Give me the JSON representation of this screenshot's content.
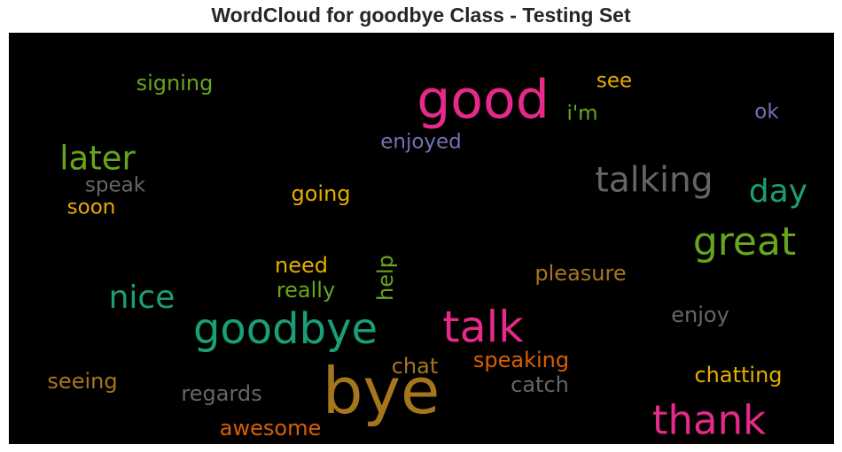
{
  "chart_data": {
    "type": "wordcloud",
    "title": "WordCloud for goodbye Class - Testing Set",
    "colors": {
      "pink": "#e7298a",
      "green": "#1b9e77",
      "lime": "#66a61e",
      "gold": "#a6761d",
      "gray": "#666666",
      "purple": "#7570b3",
      "orange": "#d95f02",
      "yellow": "#e6ab02"
    },
    "words": [
      {
        "text": "good",
        "color": "#e7298a"
      },
      {
        "text": "bye",
        "color": "#a6761d"
      },
      {
        "text": "goodbye",
        "color": "#1b9e77"
      },
      {
        "text": "talk",
        "color": "#e7298a"
      },
      {
        "text": "thank",
        "color": "#e7298a"
      },
      {
        "text": "great",
        "color": "#66a61e"
      },
      {
        "text": "talking",
        "color": "#666666"
      },
      {
        "text": "later",
        "color": "#66a61e"
      },
      {
        "text": "nice",
        "color": "#1b9e77"
      },
      {
        "text": "day",
        "color": "#1b9e77"
      },
      {
        "text": "signing",
        "color": "#66a61e"
      },
      {
        "text": "see",
        "color": "#e6ab02"
      },
      {
        "text": "i'm",
        "color": "#66a61e"
      },
      {
        "text": "ok",
        "color": "#7570b3"
      },
      {
        "text": "enjoyed",
        "color": "#7570b3"
      },
      {
        "text": "speak",
        "color": "#666666"
      },
      {
        "text": "soon",
        "color": "#e6ab02"
      },
      {
        "text": "going",
        "color": "#e6ab02"
      },
      {
        "text": "need",
        "color": "#e6ab02"
      },
      {
        "text": "really",
        "color": "#66a61e"
      },
      {
        "text": "help",
        "color": "#66a61e"
      },
      {
        "text": "pleasure",
        "color": "#a6761d"
      },
      {
        "text": "enjoy",
        "color": "#666666"
      },
      {
        "text": "chat",
        "color": "#a6761d"
      },
      {
        "text": "speaking",
        "color": "#d95f02"
      },
      {
        "text": "catch",
        "color": "#666666"
      },
      {
        "text": "chatting",
        "color": "#e6ab02"
      },
      {
        "text": "seeing",
        "color": "#a6761d"
      },
      {
        "text": "regards",
        "color": "#666666"
      },
      {
        "text": "awesome",
        "color": "#d95f02"
      }
    ]
  }
}
